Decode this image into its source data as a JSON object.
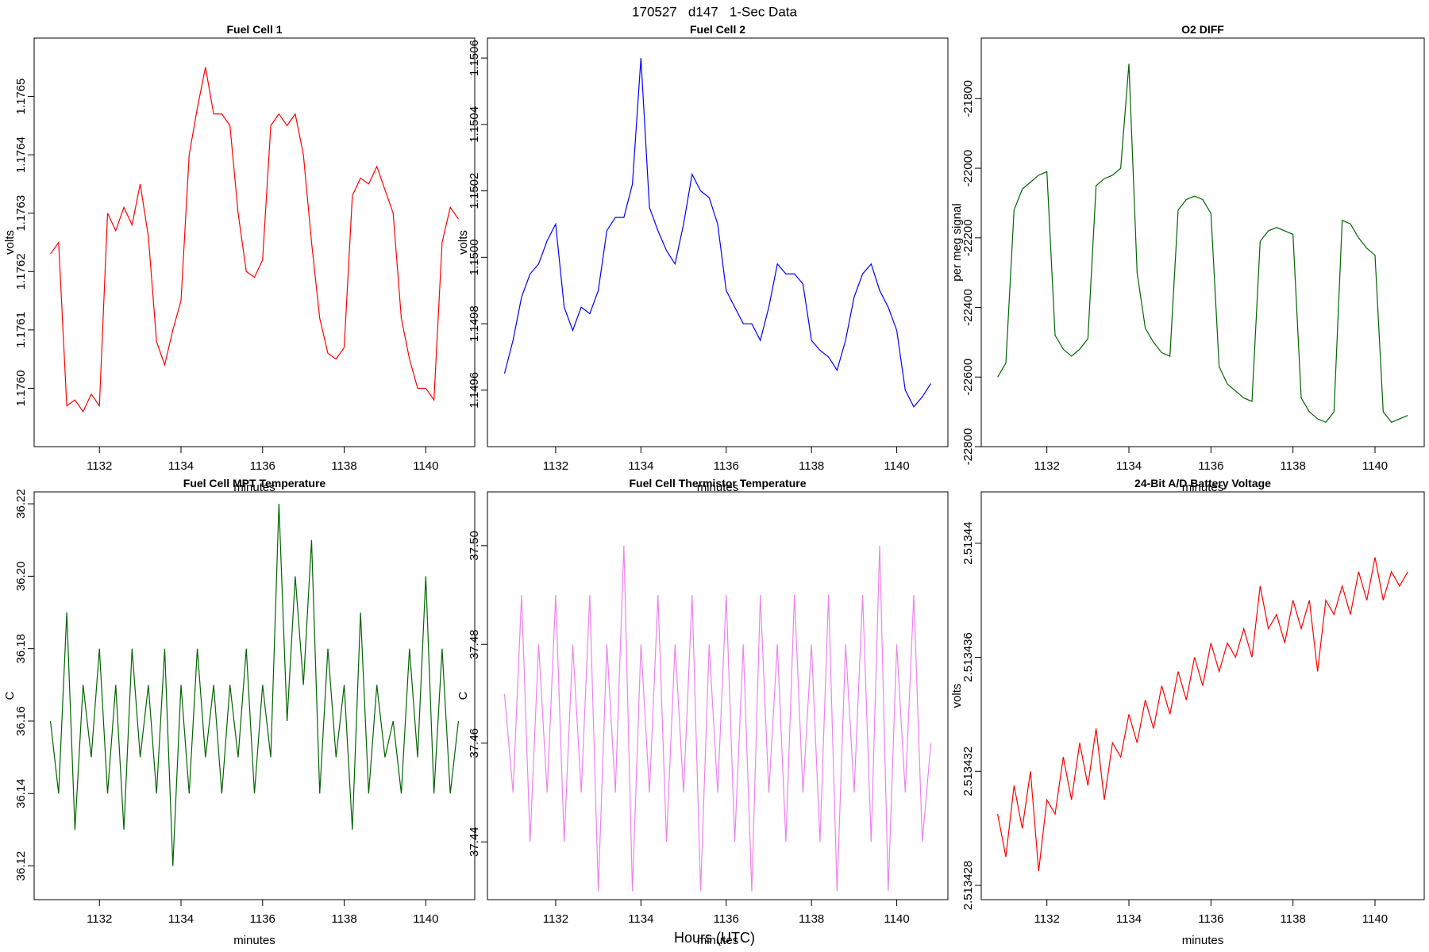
{
  "title": "170527   d147   1-Sec Data",
  "xlabel": "Hours (UTC)",
  "chart_data": [
    {
      "type": "line",
      "title": "Fuel Cell 1",
      "xlabel": "minutes",
      "ylabel": "volts",
      "x": [
        1130.8,
        1131.0,
        1131.2,
        1131.4,
        1131.6,
        1131.8,
        1132.0,
        1132.2,
        1132.4,
        1132.6,
        1132.8,
        1133.0,
        1133.2,
        1133.4,
        1133.6,
        1133.8,
        1134.0,
        1134.2,
        1134.4,
        1134.6,
        1134.8,
        1135.0,
        1135.2,
        1135.4,
        1135.6,
        1135.8,
        1136.0,
        1136.2,
        1136.4,
        1136.6,
        1136.8,
        1137.0,
        1137.2,
        1137.4,
        1137.6,
        1137.8,
        1138.0,
        1138.2,
        1138.4,
        1138.6,
        1138.8,
        1139.0,
        1139.2,
        1139.4,
        1139.6,
        1139.8,
        1140.0,
        1140.2,
        1140.4,
        1140.6,
        1140.8
      ],
      "series": [
        {
          "name": "Fuel Cell 1",
          "color": "#ff0000",
          "values": [
            1.17623,
            1.17625,
            1.17597,
            1.17598,
            1.17596,
            1.17599,
            1.17597,
            1.1763,
            1.17627,
            1.17631,
            1.17628,
            1.17635,
            1.17626,
            1.17608,
            1.17604,
            1.1761,
            1.17615,
            1.1764,
            1.17648,
            1.17655,
            1.17647,
            1.17647,
            1.17645,
            1.1763,
            1.1762,
            1.17619,
            1.17622,
            1.17645,
            1.17647,
            1.17645,
            1.17647,
            1.1764,
            1.17625,
            1.17612,
            1.17606,
            1.17605,
            1.17607,
            1.17633,
            1.17636,
            1.17635,
            1.17638,
            1.17634,
            1.1763,
            1.17612,
            1.17605,
            1.176,
            1.176,
            1.17598,
            1.17625,
            1.17631,
            1.17629
          ]
        }
      ],
      "xlim": [
        1130.4,
        1141.2
      ],
      "xticks": [
        1132,
        1134,
        1136,
        1138,
        1140
      ],
      "ylim": [
        1.1759,
        1.1766
      ],
      "yticks": [
        {
          "value": 1.176,
          "label": "1.1760"
        },
        1.1761,
        1.1762,
        1.1763,
        1.1764,
        1.1765
      ]
    },
    {
      "type": "line",
      "title": "Fuel Cell 2",
      "xlabel": "minutes",
      "ylabel": "volts",
      "x": [
        1130.8,
        1131.0,
        1131.2,
        1131.4,
        1131.6,
        1131.8,
        1132.0,
        1132.2,
        1132.4,
        1132.6,
        1132.8,
        1133.0,
        1133.2,
        1133.4,
        1133.6,
        1133.8,
        1134.0,
        1134.2,
        1134.4,
        1134.6,
        1134.8,
        1135.0,
        1135.2,
        1135.4,
        1135.6,
        1135.8,
        1136.0,
        1136.2,
        1136.4,
        1136.6,
        1136.8,
        1137.0,
        1137.2,
        1137.4,
        1137.6,
        1137.8,
        1138.0,
        1138.2,
        1138.4,
        1138.6,
        1138.8,
        1139.0,
        1139.2,
        1139.4,
        1139.6,
        1139.8,
        1140.0,
        1140.2,
        1140.4,
        1140.6,
        1140.8
      ],
      "series": [
        {
          "name": "Fuel Cell 2",
          "color": "#0000ff",
          "values": [
            1.14965,
            1.14975,
            1.14988,
            1.14995,
            1.14998,
            1.15005,
            1.1501,
            1.14985,
            1.14978,
            1.14985,
            1.14983,
            1.1499,
            1.15008,
            1.15012,
            1.15012,
            1.15022,
            1.1506,
            1.15015,
            1.15008,
            1.15002,
            1.14998,
            1.1501,
            1.15025,
            1.1502,
            1.15018,
            1.1501,
            1.1499,
            1.14985,
            1.1498,
            1.1498,
            1.14975,
            1.14985,
            1.14998,
            1.14995,
            1.14995,
            1.14992,
            1.14975,
            1.14972,
            1.1497,
            1.14966,
            1.14975,
            1.14988,
            1.14995,
            1.14998,
            1.1499,
            1.14985,
            1.14978,
            1.1496,
            1.14955,
            1.14958,
            1.14962
          ]
        }
      ],
      "xlim": [
        1130.4,
        1141.2
      ],
      "xticks": [
        1132,
        1134,
        1136,
        1138,
        1140
      ],
      "ylim": [
        1.14943,
        1.15066
      ],
      "yticks": [
        1.1496,
        1.1498,
        {
          "value": 1.15,
          "label": "1.1500"
        },
        1.1502,
        1.1504,
        1.1506
      ]
    },
    {
      "type": "line",
      "title": "O2 DIFF",
      "xlabel": "minutes",
      "ylabel": "per meg signal",
      "x": [
        1130.8,
        1131.0,
        1131.2,
        1131.4,
        1131.6,
        1131.8,
        1132.0,
        1132.2,
        1132.4,
        1132.6,
        1132.8,
        1133.0,
        1133.2,
        1133.4,
        1133.6,
        1133.8,
        1134.0,
        1134.2,
        1134.4,
        1134.6,
        1134.8,
        1135.0,
        1135.2,
        1135.4,
        1135.6,
        1135.8,
        1136.0,
        1136.2,
        1136.4,
        1136.6,
        1136.8,
        1137.0,
        1137.2,
        1137.4,
        1137.6,
        1137.8,
        1138.0,
        1138.2,
        1138.4,
        1138.6,
        1138.8,
        1139.0,
        1139.2,
        1139.4,
        1139.6,
        1139.8,
        1140.0,
        1140.2,
        1140.4,
        1140.6,
        1140.8
      ],
      "series": [
        {
          "name": "O2 DIFF",
          "color": "#006400",
          "values": [
            -22600,
            -22560,
            -22120,
            -22060,
            -22040,
            -22020,
            -22010,
            -22480,
            -22520,
            -22540,
            -22520,
            -22490,
            -22050,
            -22030,
            -22020,
            -22000,
            -21700,
            -22300,
            -22460,
            -22500,
            -22530,
            -22540,
            -22120,
            -22090,
            -22080,
            -22090,
            -22130,
            -22570,
            -22620,
            -22640,
            -22660,
            -22670,
            -22210,
            -22180,
            -22170,
            -22180,
            -22190,
            -22660,
            -22700,
            -22720,
            -22730,
            -22700,
            -22150,
            -22160,
            -22200,
            -22230,
            -22250,
            -22700,
            -22730,
            -22720,
            -22710
          ]
        }
      ],
      "xlim": [
        1130.4,
        1141.2
      ],
      "xticks": [
        1132,
        1134,
        1136,
        1138,
        1140
      ],
      "ylim": [
        -22800,
        -21626
      ],
      "yticks": [
        -22800,
        -22600,
        -22400,
        -22200,
        -22000,
        -21800
      ]
    },
    {
      "type": "line",
      "title": "Fuel Cell MPT Temperature",
      "xlabel": "minutes",
      "ylabel": "C",
      "x": [
        1130.8,
        1131.0,
        1131.2,
        1131.4,
        1131.6,
        1131.8,
        1132.0,
        1132.2,
        1132.4,
        1132.6,
        1132.8,
        1133.0,
        1133.2,
        1133.4,
        1133.6,
        1133.8,
        1134.0,
        1134.2,
        1134.4,
        1134.6,
        1134.8,
        1135.0,
        1135.2,
        1135.4,
        1135.6,
        1135.8,
        1136.0,
        1136.2,
        1136.4,
        1136.6,
        1136.8,
        1137.0,
        1137.2,
        1137.4,
        1137.6,
        1137.8,
        1138.0,
        1138.2,
        1138.4,
        1138.6,
        1138.8,
        1139.0,
        1139.2,
        1139.4,
        1139.6,
        1139.8,
        1140.0,
        1140.2,
        1140.4,
        1140.6,
        1140.8
      ],
      "series": [
        {
          "name": "Fuel Cell MPT Temperature",
          "color": "#006400",
          "values": [
            36.16,
            36.14,
            36.19,
            36.13,
            36.17,
            36.15,
            36.18,
            36.14,
            36.17,
            36.13,
            36.18,
            36.15,
            36.17,
            36.14,
            36.18,
            36.12,
            36.17,
            36.14,
            36.18,
            36.15,
            36.17,
            36.14,
            36.17,
            36.15,
            36.18,
            36.14,
            36.17,
            36.15,
            36.22,
            36.16,
            36.2,
            36.17,
            36.21,
            36.14,
            36.18,
            36.15,
            36.17,
            36.13,
            36.19,
            36.14,
            36.17,
            36.15,
            36.16,
            36.14,
            36.18,
            36.15,
            36.2,
            36.14,
            36.18,
            36.14,
            36.16
          ]
        }
      ],
      "xlim": [
        1130.4,
        1141.2
      ],
      "xticks": [
        1132,
        1134,
        1136,
        1138,
        1140
      ],
      "ylim": [
        36.1107,
        36.2233
      ],
      "yticks": [
        36.12,
        36.14,
        36.16,
        36.18,
        {
          "value": 36.2,
          "label": "36.20"
        },
        36.22
      ]
    },
    {
      "type": "line",
      "title": "Fuel Cell Thermistor Temperature",
      "xlabel": "minutes",
      "ylabel": "C",
      "x": [
        1130.8,
        1131.0,
        1131.2,
        1131.4,
        1131.6,
        1131.8,
        1132.0,
        1132.2,
        1132.4,
        1132.6,
        1132.8,
        1133.0,
        1133.2,
        1133.4,
        1133.6,
        1133.8,
        1134.0,
        1134.2,
        1134.4,
        1134.6,
        1134.8,
        1135.0,
        1135.2,
        1135.4,
        1135.6,
        1135.8,
        1136.0,
        1136.2,
        1136.4,
        1136.6,
        1136.8,
        1137.0,
        1137.2,
        1137.4,
        1137.6,
        1137.8,
        1138.0,
        1138.2,
        1138.4,
        1138.6,
        1138.8,
        1139.0,
        1139.2,
        1139.4,
        1139.6,
        1139.8,
        1140.0,
        1140.2,
        1140.4,
        1140.6,
        1140.8
      ],
      "series": [
        {
          "name": "Fuel Cell Thermistor Temperature",
          "color": "#ee82ee",
          "values": [
            37.47,
            37.45,
            37.49,
            37.44,
            37.48,
            37.45,
            37.49,
            37.44,
            37.48,
            37.45,
            37.49,
            37.43,
            37.48,
            37.45,
            37.5,
            37.43,
            37.48,
            37.45,
            37.49,
            37.44,
            37.48,
            37.45,
            37.49,
            37.43,
            37.48,
            37.45,
            37.49,
            37.44,
            37.48,
            37.43,
            37.49,
            37.45,
            37.48,
            37.44,
            37.49,
            37.45,
            37.48,
            37.44,
            37.49,
            37.43,
            37.48,
            37.45,
            37.49,
            37.44,
            37.5,
            37.43,
            37.48,
            37.45,
            37.49,
            37.44,
            37.46
          ]
        }
      ],
      "xlim": [
        1130.4,
        1141.2
      ],
      "xticks": [
        1132,
        1134,
        1136,
        1138,
        1140
      ],
      "ylim": [
        37.4283,
        37.5109
      ],
      "yticks": [
        37.44,
        37.46,
        37.48,
        {
          "value": 37.5,
          "label": "37.50"
        }
      ]
    },
    {
      "type": "line",
      "title": "24-Bit A/D Battery Voltage",
      "xlabel": "minutes",
      "ylabel": "volts",
      "x": [
        1130.8,
        1131.0,
        1131.2,
        1131.4,
        1131.6,
        1131.8,
        1132.0,
        1132.2,
        1132.4,
        1132.6,
        1132.8,
        1133.0,
        1133.2,
        1133.4,
        1133.6,
        1133.8,
        1134.0,
        1134.2,
        1134.4,
        1134.6,
        1134.8,
        1135.0,
        1135.2,
        1135.4,
        1135.6,
        1135.8,
        1136.0,
        1136.2,
        1136.4,
        1136.6,
        1136.8,
        1137.0,
        1137.2,
        1137.4,
        1137.6,
        1137.8,
        1138.0,
        1138.2,
        1138.4,
        1138.6,
        1138.8,
        1139.0,
        1139.2,
        1139.4,
        1139.6,
        1139.8,
        1140.0,
        1140.2,
        1140.4,
        1140.6,
        1140.8
      ],
      "series": [
        {
          "name": "24-Bit A/D Battery Voltage",
          "color": "#ff0000",
          "values": [
            2.5134305,
            2.513429,
            2.5134315,
            2.51343,
            2.513432,
            2.5134285,
            2.513431,
            2.5134305,
            2.5134325,
            2.513431,
            2.513433,
            2.5134315,
            2.5134335,
            2.513431,
            2.513433,
            2.5134325,
            2.513434,
            2.513433,
            2.5134345,
            2.5134335,
            2.513435,
            2.513434,
            2.5134355,
            2.5134345,
            2.513436,
            2.513435,
            2.5134365,
            2.5134355,
            2.5134365,
            2.513436,
            2.513437,
            2.513436,
            2.5134385,
            2.513437,
            2.5134375,
            2.5134365,
            2.513438,
            2.513437,
            2.513438,
            2.5134355,
            2.513438,
            2.5134375,
            2.5134385,
            2.5134375,
            2.513439,
            2.513438,
            2.5134395,
            2.513438,
            2.513439,
            2.5134385,
            2.513439
          ]
        }
      ],
      "xlim": [
        1130.4,
        1141.2
      ],
      "xticks": [
        1132,
        1134,
        1136,
        1138,
        1140
      ],
      "ylim": [
        2.5134275,
        2.5134418
      ],
      "yticks": [
        2.513428,
        2.513432,
        2.513436,
        2.51344
      ]
    }
  ]
}
